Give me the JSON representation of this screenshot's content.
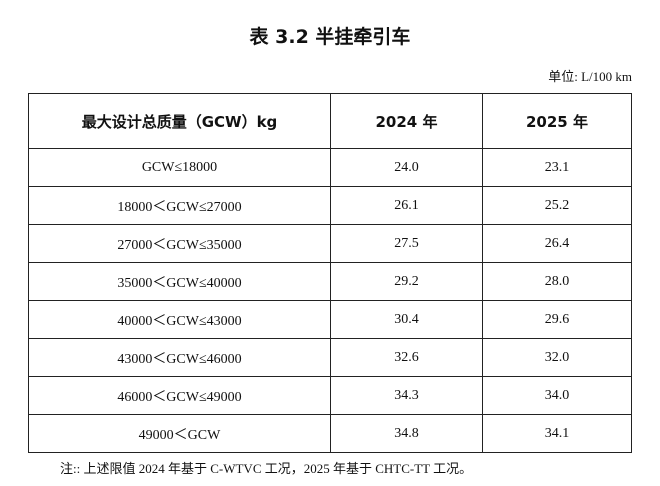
{
  "title": "表 3.2 半挂牵引车",
  "unit": "单位: L/100 km",
  "table": {
    "header": [
      "最大设计总质量（GCW）kg",
      "2024 年",
      "2025 年"
    ],
    "rows": [
      [
        "GCW≤18000",
        "24.0",
        "23.1"
      ],
      [
        "18000＜GCW≤27000",
        "26.1",
        "25.2"
      ],
      [
        "27000＜GCW≤35000",
        "27.5",
        "26.4"
      ],
      [
        "35000＜GCW≤40000",
        "29.2",
        "28.0"
      ],
      [
        "40000＜GCW≤43000",
        "30.4",
        "29.6"
      ],
      [
        "43000＜GCW≤46000",
        "32.6",
        "32.0"
      ],
      [
        "46000＜GCW≤49000",
        "34.3",
        "34.0"
      ],
      [
        "49000＜GCW",
        "34.8",
        "34.1"
      ]
    ]
  },
  "note": "注:: 上述限值 2024 年基于 C-WTVC 工况，2025 年基于 CHTC-TT 工况。"
}
